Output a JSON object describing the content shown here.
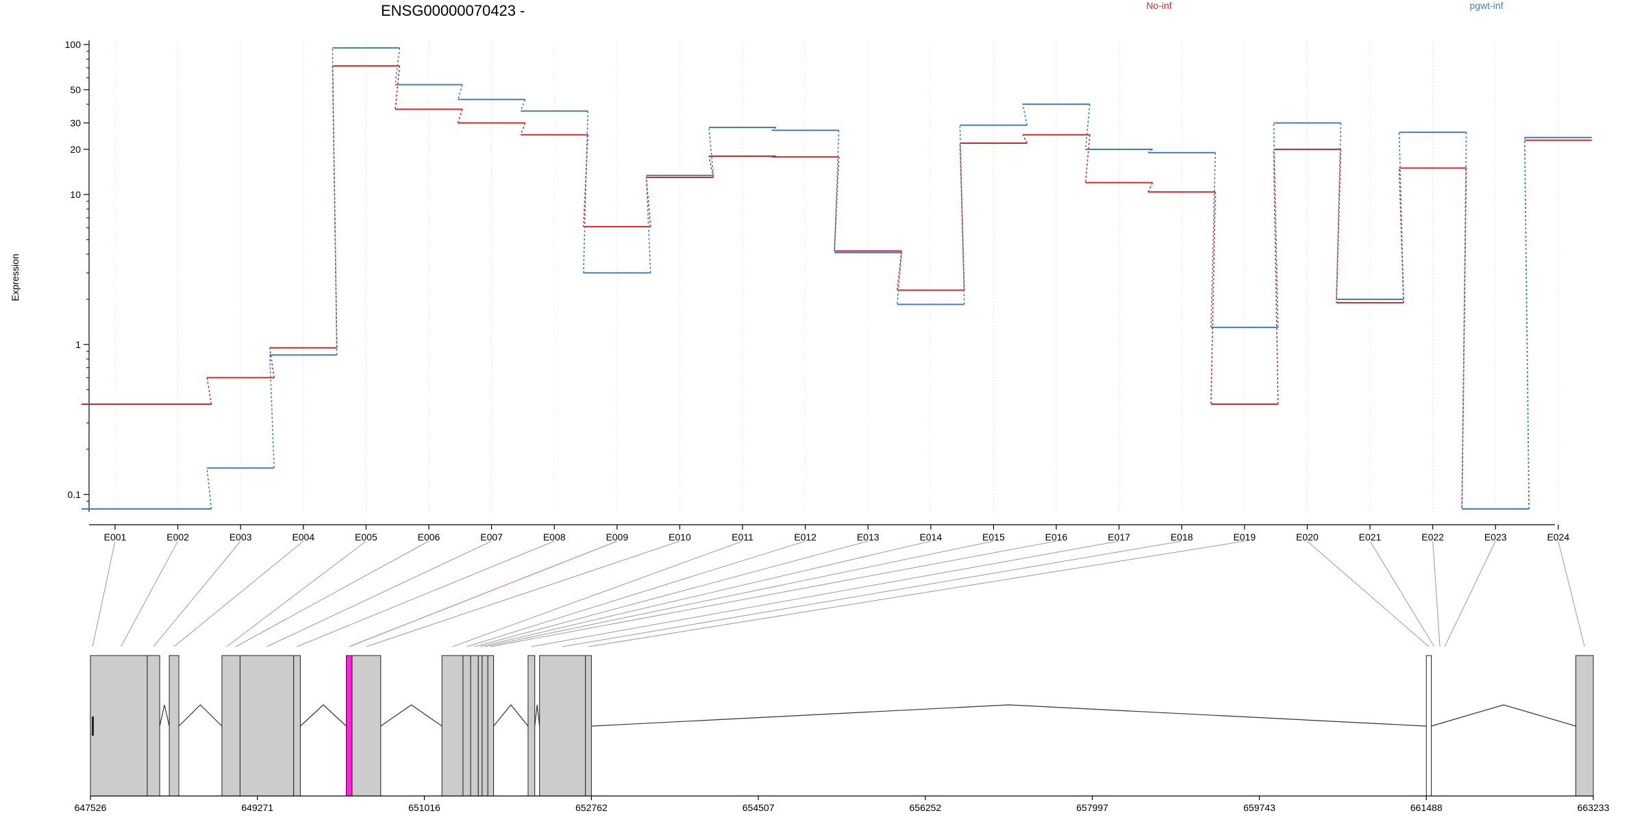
{
  "chart_data": {
    "type": "line",
    "title": "ENSG00000070423 -",
    "ylabel": "Expression",
    "y_scale": "log",
    "ylim": [
      0.08,
      100
    ],
    "y_ticks": [
      0.1,
      1,
      10,
      20,
      30,
      50,
      100
    ],
    "grid": "vertical",
    "legend_placement": "top",
    "categories": [
      "E001",
      "E002",
      "E003",
      "E004",
      "E005",
      "E006",
      "E007",
      "E008",
      "E009",
      "E010",
      "E011",
      "E012",
      "E013",
      "E014",
      "E015",
      "E016",
      "E017",
      "E018",
      "E019",
      "E020",
      "E021",
      "E022",
      "E023",
      "E024"
    ],
    "series": [
      {
        "name": "No-inf",
        "color": "#d62728",
        "values": [
          0.4,
          0.4,
          0.6,
          0.95,
          72,
          37,
          30,
          25,
          6.1,
          13,
          18,
          17.8,
          4.2,
          2.3,
          22,
          25,
          12,
          10.4,
          0.4,
          20,
          1.9,
          15,
          0.08,
          23
        ]
      },
      {
        "name": "pgwt-inf",
        "color": "#3f7fbf",
        "values": [
          0.08,
          0.08,
          0.15,
          0.85,
          95,
          54,
          43,
          36,
          3.0,
          13.4,
          28,
          26.8,
          4.1,
          1.85,
          29,
          40,
          20,
          19,
          1.3,
          30,
          2.0,
          26,
          0.08,
          24
        ]
      }
    ],
    "highlight_category": "E009",
    "highlight_color": "#ff22dd",
    "gene_model": {
      "x_ticks": [
        647526,
        649271,
        651016,
        652762,
        654507,
        656252,
        657997,
        659743,
        661488,
        663233
      ],
      "xlim": [
        647526,
        663233
      ],
      "exon_map": [
        [
          647526,
          647570
        ],
        [
          647570,
          648120
        ],
        [
          648120,
          648250
        ],
        [
          648350,
          648450
        ],
        [
          648900,
          649000
        ],
        [
          649000,
          649090
        ],
        [
          649090,
          649650
        ],
        [
          649650,
          649720
        ],
        [
          650200,
          650260
        ],
        [
          650260,
          650560
        ],
        [
          651200,
          651420
        ],
        [
          651420,
          651500
        ],
        [
          651500,
          651580
        ],
        [
          651580,
          651620
        ],
        [
          651620,
          651680
        ],
        [
          651680,
          651740
        ],
        [
          652100,
          652170
        ],
        [
          652220,
          652700
        ],
        [
          652700,
          652762
        ],
        [
          661488,
          661540
        ],
        [
          661540,
          661600
        ],
        [
          661600,
          661660
        ],
        [
          661660,
          661700
        ],
        [
          663050,
          663233
        ]
      ],
      "blocks": [
        [
          647526,
          648120
        ],
        [
          648120,
          648250
        ],
        [
          648350,
          648450
        ],
        [
          648900,
          649090
        ],
        [
          649090,
          649650
        ],
        [
          649650,
          649720
        ],
        [
          650200,
          650260
        ],
        [
          650260,
          650560
        ],
        [
          651200,
          651420
        ],
        [
          651420,
          651500
        ],
        [
          651500,
          651580
        ],
        [
          651580,
          651620
        ],
        [
          651620,
          651680
        ],
        [
          651680,
          651740
        ],
        [
          652100,
          652170
        ],
        [
          652220,
          652700
        ],
        [
          652700,
          652762
        ],
        [
          661488,
          661540
        ],
        [
          663050,
          663233
        ]
      ],
      "white_blocks": [
        [
          661488,
          661540
        ]
      ],
      "introns": [
        [
          648250,
          648350
        ],
        [
          648450,
          648900
        ],
        [
          649720,
          650200
        ],
        [
          650560,
          651200
        ],
        [
          651740,
          652100
        ],
        [
          652170,
          652220
        ],
        [
          652762,
          661488
        ],
        [
          661540,
          663050
        ]
      ]
    }
  }
}
